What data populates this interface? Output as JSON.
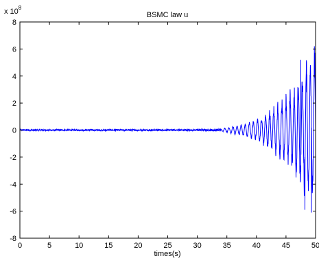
{
  "chart_data": {
    "type": "line",
    "title": "BSMC law u",
    "xlabel": "times(s)",
    "ylabel": "",
    "y_exponent_label": {
      "base": "x 10",
      "exp": "8"
    },
    "xlim": [
      0,
      50
    ],
    "ylim": [
      -8,
      8
    ],
    "y_scale_factor": 100000000,
    "xticks": [
      0,
      5,
      10,
      15,
      20,
      25,
      30,
      35,
      40,
      45,
      50
    ],
    "yticks": [
      -8,
      -6,
      -4,
      -2,
      0,
      2,
      4,
      6,
      8
    ],
    "grid": false,
    "series": [
      {
        "color": "#0000ff",
        "envelope": [
          {
            "x": 0,
            "amp": 0.05
          },
          {
            "x": 30,
            "amp": 0.06
          },
          {
            "x": 34,
            "amp": 0.1
          },
          {
            "x": 36,
            "amp": 0.3
          },
          {
            "x": 38,
            "amp": 0.5
          },
          {
            "x": 40,
            "amp": 0.8
          },
          {
            "x": 42,
            "amp": 1.5
          },
          {
            "x": 44,
            "amp": 2.3
          },
          {
            "x": 46,
            "amp": 3.2
          },
          {
            "x": 47,
            "amp": 4.0
          },
          {
            "x": 48,
            "amp": 5.0
          },
          {
            "x": 49,
            "amp": 6.0
          },
          {
            "x": 50,
            "amp": 6.2
          }
        ],
        "notable_points": [
          {
            "x": 47.5,
            "y": 5.2
          },
          {
            "x": 48.2,
            "y": -5.9
          },
          {
            "x": 49.3,
            "y": -6.1
          },
          {
            "x": 49.8,
            "y": 6.2
          }
        ]
      }
    ]
  }
}
